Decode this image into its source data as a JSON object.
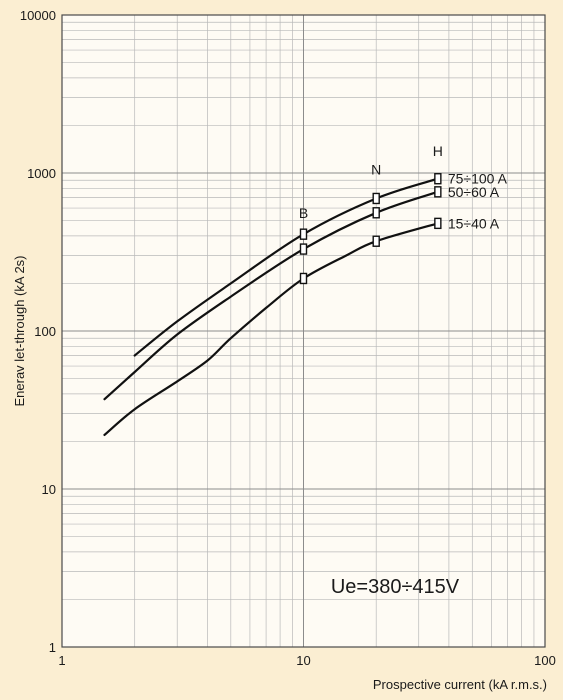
{
  "chart_data": {
    "type": "line",
    "title": "",
    "xlabel": "Prospective current (kA r.m.s.)",
    "ylabel": "Enerav let-through (kA 2s)",
    "x_scale": "log",
    "y_scale": "log",
    "xlim": [
      1,
      100
    ],
    "ylim": [
      1,
      10000
    ],
    "x_ticks": [
      1,
      10,
      100
    ],
    "y_ticks": [
      1,
      10,
      100,
      1000,
      10000
    ],
    "x_tick_labels": [
      "1",
      "10",
      "100"
    ],
    "y_tick_labels": [
      "1",
      "10",
      "100",
      "1000",
      "10000"
    ],
    "grid": true,
    "annotation": "Ue=380÷415V",
    "breaking_capacity_labels": [
      {
        "text": "B",
        "x": 10,
        "y": 520
      },
      {
        "text": "N",
        "x": 20,
        "y": 980
      },
      {
        "text": "H",
        "x": 36,
        "y": 1280
      }
    ],
    "series": [
      {
        "name": "75÷100 A",
        "x": [
          2,
          3,
          5,
          10,
          20,
          36
        ],
        "y": [
          70,
          115,
          200,
          410,
          690,
          920
        ],
        "markers": [
          {
            "x": 10,
            "y": 410
          },
          {
            "x": 20,
            "y": 690
          },
          {
            "x": 36,
            "y": 920
          }
        ]
      },
      {
        "name": "50÷60 A",
        "x": [
          1.5,
          2,
          3,
          5,
          10,
          20,
          36
        ],
        "y": [
          37,
          55,
          95,
          165,
          330,
          560,
          760
        ],
        "markers": [
          {
            "x": 10,
            "y": 330
          },
          {
            "x": 20,
            "y": 560
          },
          {
            "x": 36,
            "y": 760
          }
        ]
      },
      {
        "name": "15÷40 A",
        "x": [
          1.5,
          2,
          3,
          4,
          5,
          7,
          10,
          15,
          20,
          36
        ],
        "y": [
          22,
          32,
          48,
          65,
          90,
          140,
          215,
          300,
          370,
          480
        ],
        "markers": [
          {
            "x": 10,
            "y": 215
          },
          {
            "x": 20,
            "y": 370
          },
          {
            "x": 36,
            "y": 480
          }
        ]
      }
    ]
  }
}
